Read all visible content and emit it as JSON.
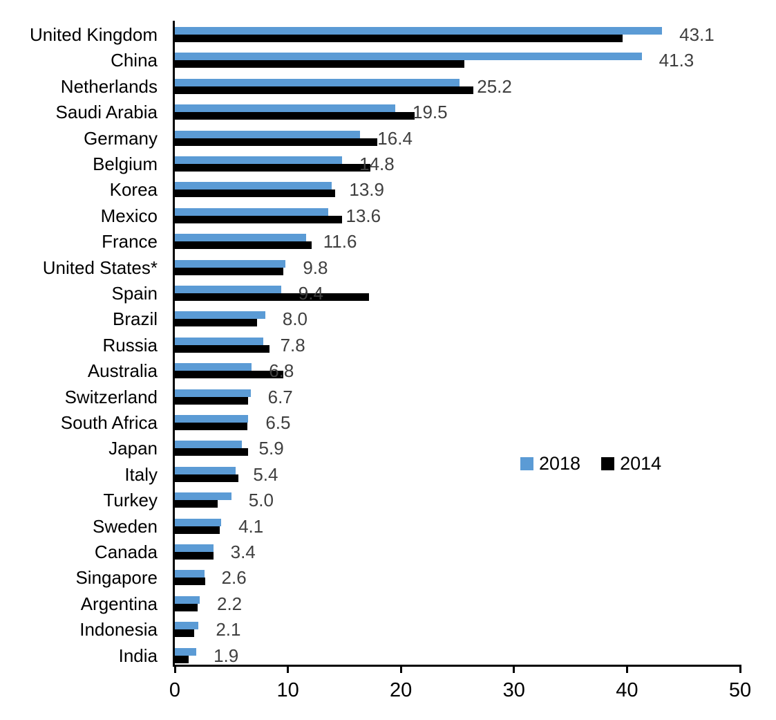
{
  "chart_data": {
    "type": "bar",
    "orientation": "horizontal",
    "title": "",
    "xlabel": "",
    "ylabel": "",
    "xlim": [
      0,
      50
    ],
    "x_ticks": [
      "0",
      "10",
      "20",
      "30",
      "40",
      "50"
    ],
    "grid": false,
    "categories": [
      "United Kingdom",
      "China",
      "Netherlands",
      "Saudi Arabia",
      "Germany",
      "Belgium",
      "Korea",
      "Mexico",
      "France",
      "United States*",
      "Spain",
      "Brazil",
      "Russia",
      "Australia",
      "Switzerland",
      "South Africa",
      "Japan",
      "Italy",
      "Turkey",
      "Sweden",
      "Canada",
      "Singapore",
      "Argentina",
      "Indonesia",
      "India"
    ],
    "series": [
      {
        "name": "2018",
        "color": "#5B9BD5",
        "values": [
          43.1,
          41.3,
          25.2,
          19.5,
          16.4,
          14.8,
          13.9,
          13.6,
          11.6,
          9.8,
          9.4,
          8.0,
          7.8,
          6.8,
          6.7,
          6.5,
          5.9,
          5.4,
          5.0,
          4.1,
          3.4,
          2.6,
          2.2,
          2.1,
          1.9
        ]
      },
      {
        "name": "2014",
        "color": "#000000",
        "values": [
          39.6,
          25.6,
          26.4,
          21.2,
          17.9,
          17.3,
          14.2,
          14.8,
          12.1,
          9.6,
          17.2,
          7.3,
          8.4,
          9.6,
          6.5,
          6.4,
          6.5,
          5.6,
          3.8,
          4.0,
          3.4,
          2.7,
          2.0,
          1.7,
          1.2
        ]
      }
    ],
    "data_labels": {
      "labeled_series": "2018",
      "values": [
        "43.1",
        "41.3",
        "25.2",
        "19.5",
        "16.4",
        "14.8",
        "13.9",
        "13.6",
        "11.6",
        "9.8",
        "9.4",
        "8.0",
        "7.8",
        "6.8",
        "6.7",
        "6.5",
        "5.9",
        "5.4",
        "5.0",
        "4.1",
        "3.4",
        "2.6",
        "2.2",
        "2.1",
        "1.9"
      ],
      "color": "#3f3f3f"
    },
    "legend": {
      "position": "center-right",
      "entries": [
        "2018",
        "2014"
      ]
    }
  },
  "colors": {
    "series_2018": "#5B9BD5",
    "series_2014": "#000000",
    "axis": "#000000",
    "background": "#ffffff",
    "value_label": "#3f3f3f"
  }
}
